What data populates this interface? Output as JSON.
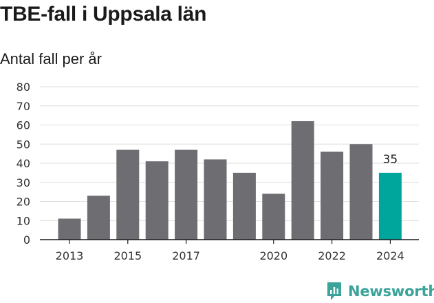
{
  "header": {
    "title": "TBE-fall i Uppsala län",
    "subtitle": "Antal fall per år"
  },
  "chart_data": {
    "type": "bar",
    "categories": [
      "2013",
      "2014",
      "2015",
      "2016",
      "2017",
      "2018",
      "2019",
      "2020",
      "2021",
      "2022",
      "2023",
      "2024"
    ],
    "values": [
      11,
      23,
      47,
      41,
      47,
      42,
      35,
      24,
      62,
      46,
      50,
      35
    ],
    "x_tick_labels": [
      "2013",
      "2015",
      "2017",
      "2020",
      "2022",
      "2024"
    ],
    "y_ticks": [
      0,
      10,
      20,
      30,
      40,
      50,
      60,
      70,
      80
    ],
    "ylim": [
      0,
      80
    ],
    "grid": true,
    "bar_color": "#6e6d72",
    "highlight_color": "#00a69c",
    "highlight_index": 11,
    "data_labels": [
      {
        "category": "2024",
        "text": "35"
      }
    ]
  },
  "logo": {
    "text": "Newsworthy",
    "color": "#3aa39a"
  }
}
